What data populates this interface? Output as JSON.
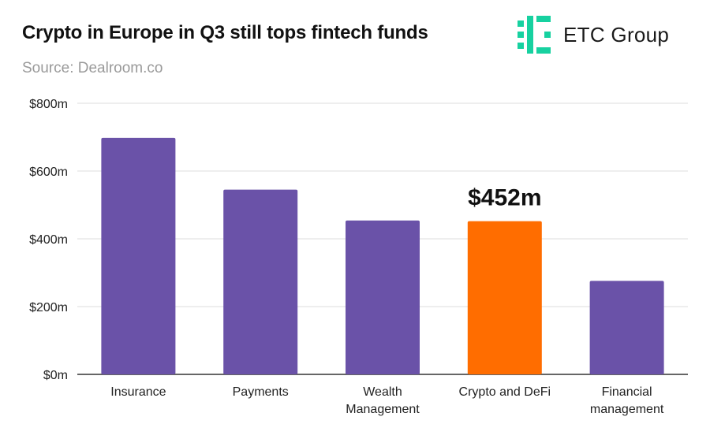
{
  "header": {
    "title": "Crypto in Europe in Q3 still tops fintech funds",
    "source": "Source: Dealroom.co"
  },
  "brand": {
    "name": "ETC Group",
    "icon": "etc-group-logo-icon",
    "color": "#17d1a0"
  },
  "colors": {
    "default_bar": "#6a52a8",
    "highlight_bar": "#ff6d00",
    "gridline": "#dddddd",
    "axis": "#333333"
  },
  "chart_data": {
    "type": "bar",
    "title": "Crypto in Europe in Q3 still tops fintech funds",
    "xlabel": "",
    "ylabel": "",
    "ylim": [
      0,
      800
    ],
    "yticks": [
      {
        "value": 0,
        "label": "$0m"
      },
      {
        "value": 200,
        "label": "$200m"
      },
      {
        "value": 400,
        "label": "$400m"
      },
      {
        "value": 600,
        "label": "$600m"
      },
      {
        "value": 800,
        "label": "$800m"
      }
    ],
    "grid": true,
    "categories": [
      [
        "Insurance"
      ],
      [
        "Payments"
      ],
      [
        "Wealth",
        "Management"
      ],
      [
        "Crypto and DeFi"
      ],
      [
        "Financial",
        "management"
      ]
    ],
    "values": [
      698,
      545,
      454,
      452,
      276
    ],
    "highlight_index": 3,
    "annotation": "$452m"
  }
}
